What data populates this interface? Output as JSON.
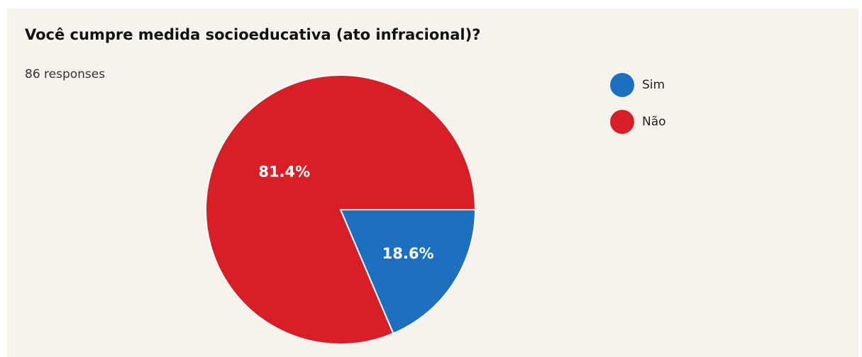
{
  "chart_data": {
    "type": "pie",
    "title": "Você cumpre medida socioeducativa (ato infracional)?",
    "subtitle": "86 responses",
    "categories": [
      "Sim",
      "Não"
    ],
    "values": [
      18.6,
      81.4
    ],
    "value_labels": [
      "18.6%",
      "81.4%"
    ],
    "colors": [
      "#1d6fbf",
      "#d81f27"
    ],
    "legend": "right"
  }
}
